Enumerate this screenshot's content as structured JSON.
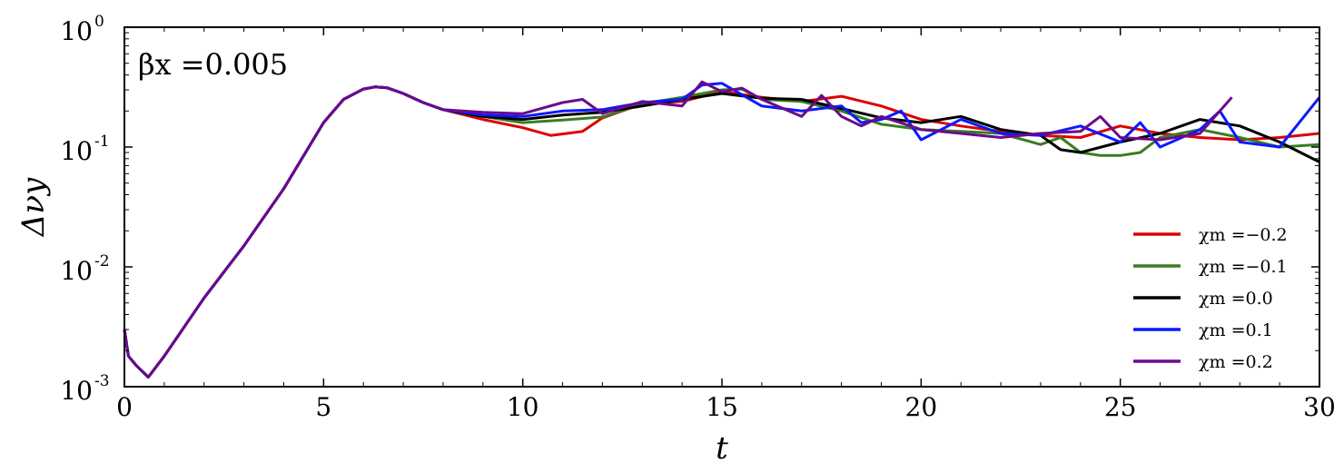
{
  "chart_data": {
    "type": "line",
    "title": "",
    "annotation": "βx =0.005",
    "xlabel": "t",
    "ylabel": "Δνy",
    "xlim": [
      0,
      30
    ],
    "ylim": [
      0.001,
      1
    ],
    "yscale": "log",
    "grid": false,
    "legend_position": "lower-right",
    "xticks": [
      0,
      5,
      10,
      15,
      20,
      25,
      30
    ],
    "yticks": [
      {
        "value": 0.001,
        "base": "10",
        "exp": "-3"
      },
      {
        "value": 0.01,
        "base": "10",
        "exp": "-2"
      },
      {
        "value": 0.1,
        "base": "10",
        "exp": "-1"
      },
      {
        "value": 1,
        "base": "10",
        "exp": "0"
      }
    ],
    "common_start": {
      "x": [
        0,
        0.1,
        0.3,
        0.6,
        1,
        2,
        3,
        4,
        5,
        5.5,
        6,
        6.3,
        6.6,
        7,
        7.5,
        8
      ],
      "y": [
        0.003,
        0.0018,
        0.0015,
        0.0012,
        0.0018,
        0.0055,
        0.015,
        0.045,
        0.16,
        0.25,
        0.305,
        0.318,
        0.312,
        0.28,
        0.235,
        0.205
      ]
    },
    "series": [
      {
        "name": "χm =−0.2",
        "color": "#dd0000",
        "x": [
          8,
          9,
          10,
          10.7,
          11.5,
          12,
          13,
          14,
          15,
          16,
          17,
          18,
          19,
          20,
          21,
          22,
          23,
          24,
          25,
          26,
          27,
          28,
          29,
          30
        ],
        "y": [
          0.19,
          0.17,
          0.145,
          0.125,
          0.135,
          0.175,
          0.23,
          0.24,
          0.29,
          0.26,
          0.24,
          0.265,
          0.22,
          0.17,
          0.15,
          0.135,
          0.125,
          0.12,
          0.15,
          0.13,
          0.12,
          0.115,
          0.12,
          0.13
        ]
      },
      {
        "name": "χm =−0.1",
        "color": "#3a7d22",
        "x": [
          8,
          9,
          10,
          11,
          12,
          13,
          14,
          15,
          15.5,
          16,
          17,
          18,
          19,
          20,
          21,
          22,
          23,
          23.5,
          24,
          24.5,
          25,
          25.5,
          26,
          27,
          28,
          29,
          30
        ],
        "y": [
          0.19,
          0.18,
          0.16,
          0.168,
          0.178,
          0.23,
          0.26,
          0.3,
          0.305,
          0.25,
          0.24,
          0.2,
          0.155,
          0.14,
          0.135,
          0.13,
          0.105,
          0.12,
          0.09,
          0.085,
          0.085,
          0.09,
          0.12,
          0.14,
          0.12,
          0.1,
          0.105
        ]
      },
      {
        "name": "χm =0.0",
        "color": "#000000",
        "x": [
          8,
          9,
          10,
          11,
          12,
          13,
          14,
          15,
          16,
          17,
          18,
          19,
          20,
          21,
          22,
          23,
          23.5,
          24,
          25,
          26,
          27,
          28,
          29,
          30
        ],
        "y": [
          0.19,
          0.18,
          0.17,
          0.185,
          0.195,
          0.22,
          0.25,
          0.28,
          0.255,
          0.25,
          0.21,
          0.175,
          0.16,
          0.18,
          0.14,
          0.125,
          0.095,
          0.09,
          0.11,
          0.13,
          0.17,
          0.15,
          0.11,
          0.075
        ]
      },
      {
        "name": "χm =0.1",
        "color": "#0a1aff",
        "x": [
          8,
          9,
          10,
          11,
          12,
          13,
          14,
          14.5,
          15,
          16,
          17,
          18,
          18.5,
          19,
          19.5,
          20,
          21,
          22,
          23,
          24,
          25,
          25.5,
          26,
          27,
          27.5,
          28,
          29,
          30
        ],
        "y": [
          0.19,
          0.185,
          0.18,
          0.2,
          0.205,
          0.235,
          0.25,
          0.33,
          0.34,
          0.22,
          0.2,
          0.22,
          0.16,
          0.17,
          0.2,
          0.115,
          0.17,
          0.13,
          0.125,
          0.15,
          0.11,
          0.16,
          0.1,
          0.14,
          0.2,
          0.11,
          0.1,
          0.26
        ]
      },
      {
        "name": "χm =0.2",
        "color": "#6b0a8c",
        "x": [
          8,
          9,
          10,
          11,
          11.5,
          12,
          13,
          14,
          14.5,
          15,
          15.5,
          16,
          17,
          17.5,
          18,
          18.5,
          19,
          20,
          21,
          22,
          23,
          24,
          24.5,
          25,
          26,
          27,
          27.5,
          27.8
        ],
        "y": [
          0.195,
          0.195,
          0.19,
          0.235,
          0.25,
          0.19,
          0.24,
          0.22,
          0.35,
          0.29,
          0.31,
          0.25,
          0.18,
          0.27,
          0.18,
          0.15,
          0.18,
          0.14,
          0.13,
          0.12,
          0.13,
          0.135,
          0.18,
          0.12,
          0.115,
          0.13,
          0.2,
          0.26
        ]
      }
    ]
  }
}
